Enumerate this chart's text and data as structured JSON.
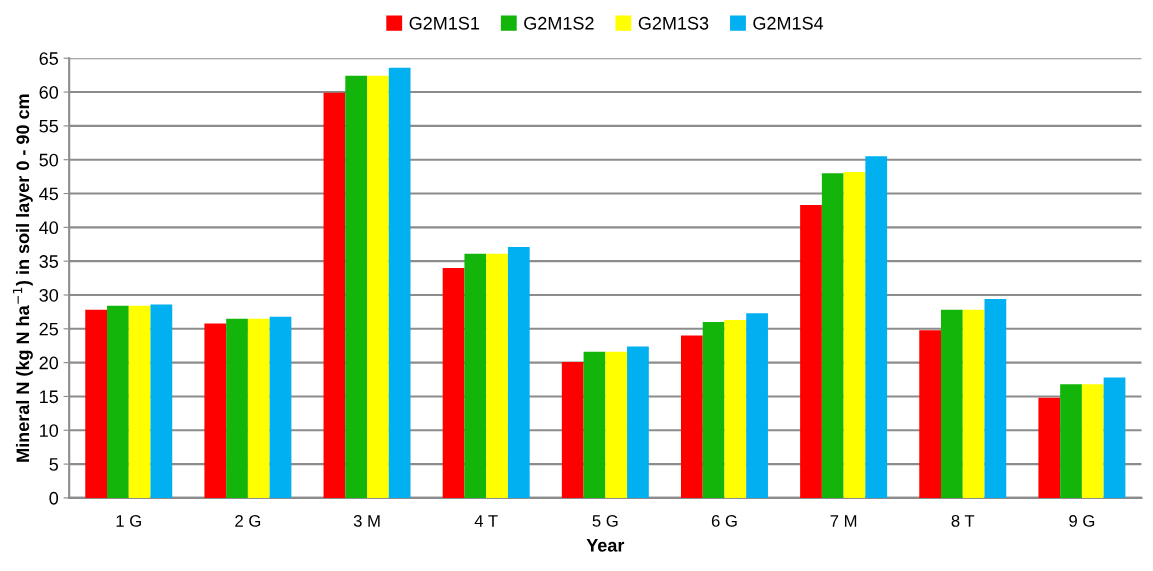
{
  "chart_data": {
    "type": "bar",
    "xlabel": "Year",
    "ylabel": "Mineral N (kg N ha$^{−1}$) in soil layer 0 - 90 cm",
    "categories": [
      "1 G",
      "2 G",
      "3 M",
      "4 T",
      "5 G",
      "6 G",
      "7 M",
      "8 T",
      "9 G"
    ],
    "series": [
      {
        "name": "G2M1S1",
        "color": "#ff0000",
        "values": [
          27.8,
          25.8,
          59.9,
          34.0,
          20.1,
          24.0,
          43.3,
          24.8,
          14.8
        ]
      },
      {
        "name": "G2M1S2",
        "color": "#13b50a",
        "values": [
          28.4,
          26.5,
          62.4,
          36.1,
          21.6,
          26.0,
          48.0,
          27.8,
          16.8
        ]
      },
      {
        "name": "G2M1S3",
        "color": "#ffff00",
        "values": [
          28.4,
          26.5,
          62.4,
          36.1,
          21.6,
          26.3,
          48.2,
          27.8,
          16.8
        ]
      },
      {
        "name": "G2M1S4",
        "color": "#00b0f0",
        "values": [
          28.6,
          26.8,
          63.6,
          37.1,
          22.4,
          27.3,
          50.5,
          29.4,
          17.8
        ]
      }
    ],
    "ylim": [
      0,
      65
    ],
    "yticks": [
      0,
      5,
      10,
      15,
      20,
      25,
      30,
      35,
      40,
      45,
      50,
      55,
      60,
      65
    ],
    "grid": "y",
    "legend": "top"
  }
}
